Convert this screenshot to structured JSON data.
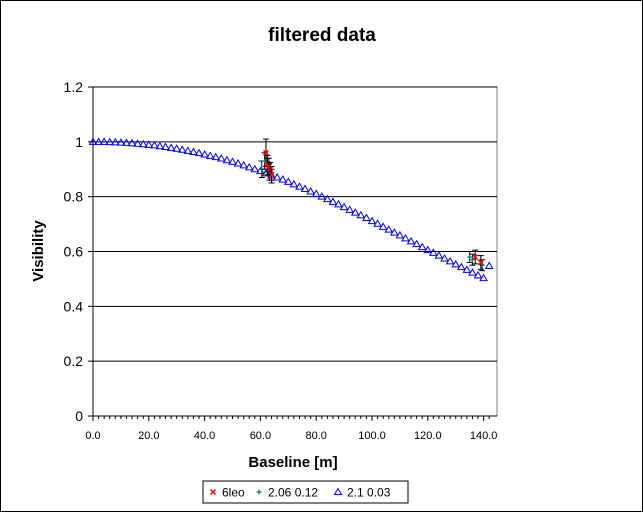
{
  "chart_data": {
    "type": "scatter",
    "title": "filtered data",
    "xlabel": "Baseline [m]",
    "ylabel": "Visibility",
    "xlim": [
      0,
      142
    ],
    "ylim": [
      0,
      1.2
    ],
    "grid": "horizontal major",
    "legend_position": "bottom",
    "yticks": [
      "0",
      "0.2",
      "0.4",
      "0.6",
      "0.8",
      "1",
      "1.2"
    ],
    "xticks": [
      "0.0",
      "20.0",
      "40.0",
      "60.0",
      "80.0",
      "100.0",
      "120.0",
      "140.0"
    ],
    "series": [
      {
        "name": "6leo",
        "marker": "x",
        "color": "#ff0000",
        "x": [
          62.0,
          62.5,
          63.0,
          63.5,
          64.0,
          137.0,
          139.0
        ],
        "y": [
          0.96,
          0.92,
          0.91,
          0.9,
          0.88,
          0.58,
          0.56
        ],
        "err": [
          0.05,
          0.03,
          0.03,
          0.025,
          0.02,
          0.025,
          0.025
        ]
      },
      {
        "name": "2.06 0.12",
        "marker": "plus",
        "color": "#008080",
        "x": [
          60.5,
          61.5,
          62.5,
          63.2,
          64.0,
          135.0,
          136.0,
          139.5
        ],
        "y": [
          0.9,
          0.93,
          0.91,
          0.89,
          0.88,
          0.58,
          0.57,
          0.55
        ],
        "err": [
          0.03,
          0.03,
          0.03,
          0.03,
          0.03,
          0.02,
          0.02,
          0.02
        ]
      },
      {
        "name": "2.1 0.03",
        "marker": "triangle",
        "color": "#0000ff",
        "x": [
          0,
          2,
          4,
          6,
          8,
          10,
          12,
          14,
          16,
          18,
          20,
          22,
          24,
          26,
          28,
          30,
          32,
          34,
          36,
          38,
          40,
          42,
          44,
          46,
          48,
          50,
          52,
          54,
          56,
          58,
          60,
          62,
          64,
          66,
          68,
          70,
          72,
          74,
          76,
          78,
          80,
          82,
          84,
          86,
          88,
          90,
          92,
          94,
          96,
          98,
          100,
          102,
          104,
          106,
          108,
          110,
          112,
          114,
          116,
          118,
          120,
          122,
          124,
          126,
          128,
          130,
          132,
          134,
          136,
          138,
          140,
          142
        ],
        "y": [
          1.0,
          1.0,
          1.0,
          0.999,
          0.998,
          0.997,
          0.996,
          0.995,
          0.993,
          0.991,
          0.989,
          0.987,
          0.984,
          0.981,
          0.978,
          0.975,
          0.971,
          0.967,
          0.963,
          0.959,
          0.954,
          0.949,
          0.944,
          0.939,
          0.933,
          0.927,
          0.921,
          0.914,
          0.907,
          0.9,
          0.893,
          0.885,
          0.877,
          0.87,
          0.862,
          0.854,
          0.845,
          0.836,
          0.828,
          0.819,
          0.81,
          0.8,
          0.791,
          0.781,
          0.772,
          0.762,
          0.752,
          0.742,
          0.732,
          0.722,
          0.711,
          0.701,
          0.69,
          0.68,
          0.669,
          0.659,
          0.648,
          0.637,
          0.627,
          0.616,
          0.605,
          0.595,
          0.585,
          0.574,
          0.564,
          0.553,
          0.543,
          0.533,
          0.523,
          0.513,
          0.503,
          0.547
        ]
      }
    ]
  },
  "colors": {
    "plot_background": "#ffffff",
    "gridline": "#000000",
    "frame": "#808080"
  }
}
